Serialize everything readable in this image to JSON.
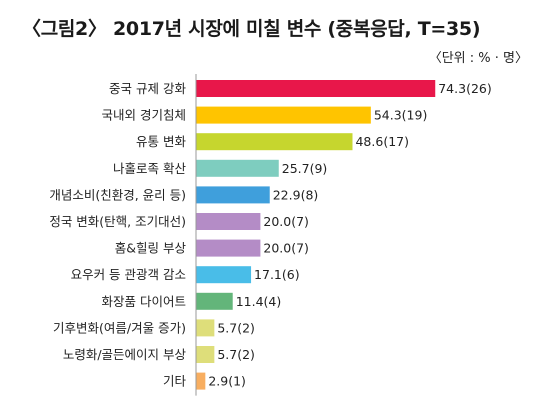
{
  "title": "〈그림2〉 2017년 시장에 미칠 변수 (중복응답,  T=35)",
  "unit_note": "〈단위 : % · 명〉",
  "chart_data": {
    "type": "bar",
    "orientation": "horizontal",
    "title": "〈그림2〉 2017년 시장에 미칠 변수 (중복응답,  T=35)",
    "unit": "〈단위 : % · 명〉",
    "xlim": [
      0,
      80
    ],
    "grid": false,
    "legend": "none",
    "categories": [
      "중국 규제 강화",
      "국내외 경기침체",
      "유통 변화",
      "나홀로족 확산",
      "개념소비(친환경, 윤리 등)",
      "정국 변화(탄핵, 조기대선)",
      "홈&힐링 부상",
      "요우커 등 관광객 감소",
      "화장품 다이어트",
      "기후변화(여름/겨울 증가)",
      "노령화/골든에이지 부상",
      "기타"
    ],
    "values": [
      74.3,
      54.3,
      48.6,
      25.7,
      22.9,
      20.0,
      20.0,
      17.1,
      11.4,
      5.7,
      5.7,
      2.9
    ],
    "counts": [
      26,
      19,
      17,
      9,
      8,
      7,
      7,
      6,
      4,
      2,
      2,
      1
    ],
    "value_labels": [
      "74.3(26)",
      "54.3(19)",
      "48.6(17)",
      "25.7(9)",
      "22.9(8)",
      "20.0(7)",
      "20.0(7)",
      "17.1(6)",
      "11.4(4)",
      "5.7(2)",
      "5.7(2)",
      "2.9(1)"
    ],
    "colors": [
      "#e8174a",
      "#ffc400",
      "#c6d62e",
      "#7ecdbf",
      "#3f9fdc",
      "#b48cc6",
      "#b48cc6",
      "#49bde8",
      "#63b57a",
      "#dede7a",
      "#dede7a",
      "#f8ae60"
    ]
  }
}
